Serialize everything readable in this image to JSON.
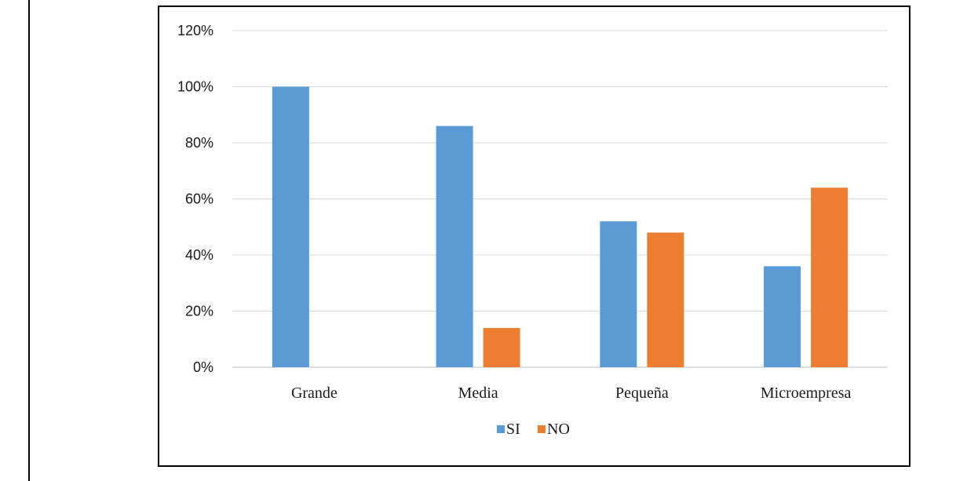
{
  "chart_data": {
    "type": "bar",
    "categories": [
      "Grande",
      "Media",
      "Pequeña",
      "Microempresa"
    ],
    "series": [
      {
        "name": "SI",
        "values": [
          100,
          86,
          52,
          36
        ],
        "color": "#5b9bd5"
      },
      {
        "name": "NO",
        "values": [
          0,
          14,
          48,
          64
        ],
        "color": "#ed7d31"
      }
    ],
    "ylim": [
      0,
      120
    ],
    "yticks": [
      0,
      20,
      40,
      60,
      80,
      100,
      120
    ],
    "ytick_labels": [
      "0%",
      "20%",
      "40%",
      "60%",
      "80%",
      "100%",
      "120%"
    ],
    "grid": true,
    "legend_position": "bottom"
  }
}
